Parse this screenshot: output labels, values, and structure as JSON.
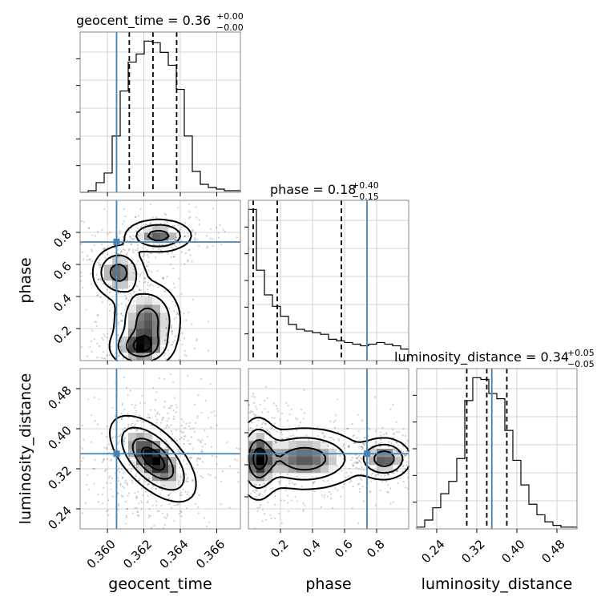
{
  "chart_data": {
    "type": "corner",
    "parameters": [
      "geocent_time",
      "phase",
      "luminosity_distance"
    ],
    "truth_color": "#4682b4",
    "truths": {
      "geocent_time": 0.3605,
      "phase": 0.74,
      "luminosity_distance": 0.35
    },
    "panels": {
      "geocent_time": {
        "title_main": "geocent_time = 0.36",
        "title_plus": "+0.00",
        "title_minus": "−0.00",
        "range": [
          0.3585,
          0.3673
        ],
        "ticks": [
          0.36,
          0.362,
          0.364,
          0.366
        ],
        "tick_labels": [
          "0.360",
          "0.362",
          "0.364",
          "0.366"
        ],
        "quantiles": [
          0.3612,
          0.3625,
          0.3638
        ],
        "hist_bin_edges": [
          0.3585,
          0.35894,
          0.35938,
          0.35982,
          0.36026,
          0.3607,
          0.36114,
          0.36158,
          0.36202,
          0.36246,
          0.3629,
          0.36334,
          0.36378,
          0.36422,
          0.36466,
          0.3651,
          0.36554,
          0.36598,
          0.36642,
          0.36686,
          0.3673
        ],
        "hist_counts": [
          0,
          0.01,
          0.06,
          0.12,
          0.35,
          0.63,
          0.81,
          0.86,
          0.94,
          0.93,
          0.87,
          0.79,
          0.64,
          0.35,
          0.13,
          0.05,
          0.03,
          0.02,
          0.01,
          0.01
        ]
      },
      "phase": {
        "title_main": "phase = 0.18",
        "title_plus": "+0.40",
        "title_minus": "−0.15",
        "range": [
          0.0,
          1.0
        ],
        "ticks": [
          0.2,
          0.4,
          0.6,
          0.8
        ],
        "tick_labels": [
          "0.2",
          "0.4",
          "0.6",
          "0.8"
        ],
        "quantiles": [
          0.03,
          0.18,
          0.58
        ],
        "hist_bin_edges": [
          0.0,
          0.05,
          0.1,
          0.15,
          0.2,
          0.25,
          0.3,
          0.35,
          0.4,
          0.45,
          0.5,
          0.55,
          0.6,
          0.65,
          0.7,
          0.75,
          0.8,
          0.85,
          0.9,
          0.95,
          1.0
        ],
        "hist_counts": [
          0.92,
          0.55,
          0.4,
          0.33,
          0.27,
          0.22,
          0.19,
          0.18,
          0.17,
          0.16,
          0.13,
          0.12,
          0.11,
          0.1,
          0.09,
          0.1,
          0.11,
          0.1,
          0.09,
          0.07
        ]
      },
      "luminosity_distance": {
        "title_main": "luminosity_distance = 0.34",
        "title_plus": "+0.05",
        "title_minus": "−0.05",
        "range": [
          0.2,
          0.52
        ],
        "ticks": [
          0.24,
          0.32,
          0.4,
          0.48
        ],
        "tick_labels": [
          "0.24",
          "0.32",
          "0.40",
          "0.48"
        ],
        "quantiles": [
          0.3,
          0.34,
          0.38
        ],
        "hist_bin_edges": [
          0.2,
          0.216,
          0.232,
          0.248,
          0.264,
          0.28,
          0.296,
          0.312,
          0.328,
          0.344,
          0.36,
          0.376,
          0.392,
          0.408,
          0.424,
          0.44,
          0.456,
          0.472,
          0.488,
          0.504,
          0.52
        ],
        "hist_counts": [
          0.01,
          0.05,
          0.12,
          0.2,
          0.27,
          0.4,
          0.73,
          0.86,
          0.85,
          0.77,
          0.74,
          0.56,
          0.39,
          0.25,
          0.14,
          0.08,
          0.04,
          0.02,
          0.01,
          0.01
        ]
      }
    },
    "density_2d": {
      "phase_vs_geocent_time": {
        "x": "geocent_time",
        "y": "phase",
        "components": [
          {
            "mean": [
              0.3622,
              0.25
            ],
            "std": [
              0.0009,
              0.12
            ]
          },
          {
            "mean": [
              0.3618,
              0.08
            ],
            "std": [
              0.0008,
              0.06
            ]
          },
          {
            "mean": [
              0.3628,
              0.78
            ],
            "std": [
              0.0009,
              0.05
            ]
          },
          {
            "mean": [
              0.3606,
              0.55
            ],
            "std": [
              0.0007,
              0.08
            ]
          }
        ]
      },
      "luminosity_distance_vs_geocent_time": {
        "x": "geocent_time",
        "y": "luminosity_distance",
        "components": [
          {
            "mean": [
              0.3625,
              0.34
            ],
            "std": [
              0.0011,
              0.04
            ],
            "corr": -0.6
          }
        ]
      },
      "luminosity_distance_vs_phase": {
        "x": "phase",
        "y": "luminosity_distance",
        "components": [
          {
            "mean": [
              0.06,
              0.34
            ],
            "std": [
              0.06,
              0.04
            ]
          },
          {
            "mean": [
              0.35,
              0.34
            ],
            "std": [
              0.18,
              0.03
            ]
          },
          {
            "mean": [
              0.85,
              0.34
            ],
            "std": [
              0.08,
              0.02
            ]
          }
        ]
      }
    },
    "grid": true
  }
}
